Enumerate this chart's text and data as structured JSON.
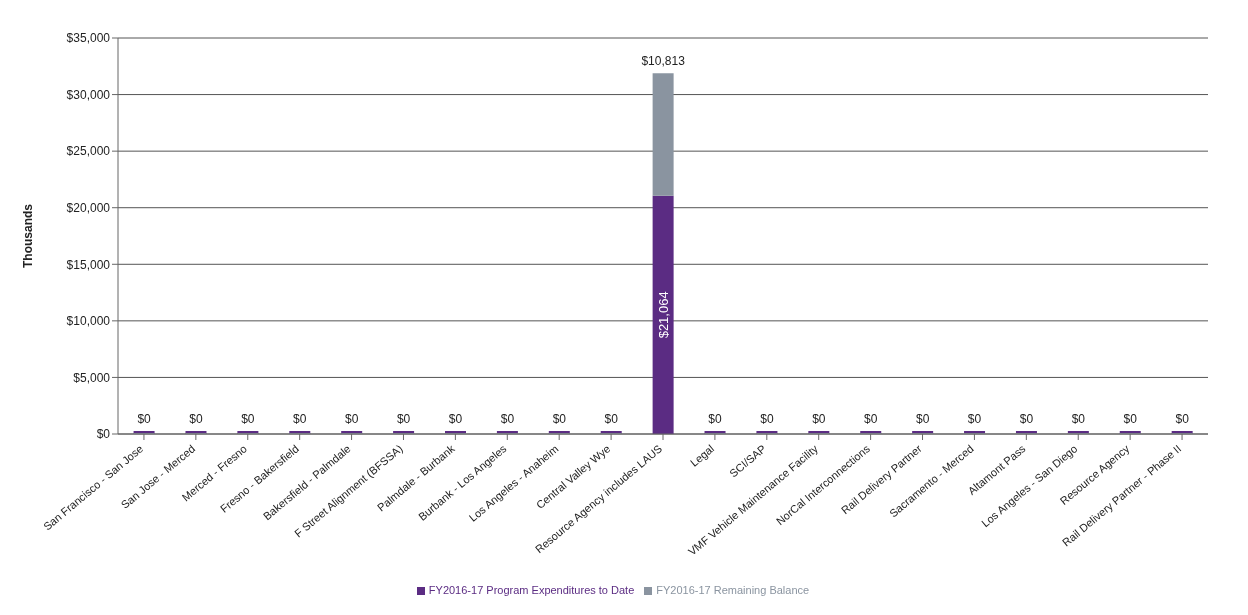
{
  "chart_data": {
    "type": "bar",
    "stacked": true,
    "ylabel": "Thousands",
    "categories": [
      "San Francisco - San Jose",
      "San Jose - Merced",
      "Merced - Fresno",
      "Fresno - Bakersfield",
      "Bakersfield - Palmdale",
      "F Street Alignment (BFSSA)",
      "Palmdale - Burbank",
      "Burbank - Los Angeles",
      "Los Angeles - Anaheim",
      "Central Valley Wye",
      "Resource Agency includes LAUS",
      "Legal",
      "SCI/SAP",
      "VMF Vehicle Maintenance Facility",
      "NorCal Interconnections",
      "Rail Delivery Partner",
      "Sacramento - Merced",
      "Altamont Pass",
      "Los Angeles - San Diego",
      "Resource Agency",
      "Rail Delivery Partner  - Phase II"
    ],
    "series": [
      {
        "name": "FY2016-17 Program Expenditures to Date",
        "color": "#5b2c83",
        "values": [
          0,
          0,
          0,
          0,
          0,
          0,
          0,
          0,
          0,
          0,
          21064,
          0,
          0,
          0,
          0,
          0,
          0,
          0,
          0,
          0,
          0
        ],
        "value_labels": [
          "$0",
          "$0",
          "$0",
          "$0",
          "$0",
          "$0",
          "$0",
          "$0",
          "$0",
          "$0",
          "$21,064",
          "$0",
          "$0",
          "$0",
          "$0",
          "$0",
          "$0",
          "$0",
          "$0",
          "$0",
          "$0"
        ]
      },
      {
        "name": "FY2016-17 Remaining Balance",
        "color": "#8a94a0",
        "values": [
          0,
          0,
          0,
          0,
          0,
          0,
          0,
          0,
          0,
          0,
          10813,
          0,
          0,
          0,
          0,
          0,
          0,
          0,
          0,
          0,
          0
        ],
        "value_labels": [
          null,
          null,
          null,
          null,
          null,
          null,
          null,
          null,
          null,
          null,
          "$10,813",
          null,
          null,
          null,
          null,
          null,
          null,
          null,
          null,
          null,
          null
        ]
      }
    ],
    "ylim": [
      0,
      35000
    ],
    "yticks": [
      {
        "value": 0,
        "label": "$0"
      },
      {
        "value": 5000,
        "label": "$5,000"
      },
      {
        "value": 10000,
        "label": "$10,000"
      },
      {
        "value": 15000,
        "label": "$15,000"
      },
      {
        "value": 20000,
        "label": "$20,000"
      },
      {
        "value": 25000,
        "label": "$25,000"
      },
      {
        "value": 30000,
        "label": "$30,000"
      },
      {
        "value": 35000,
        "label": "$35,000"
      }
    ],
    "grid": "y",
    "legend": "bottom"
  }
}
